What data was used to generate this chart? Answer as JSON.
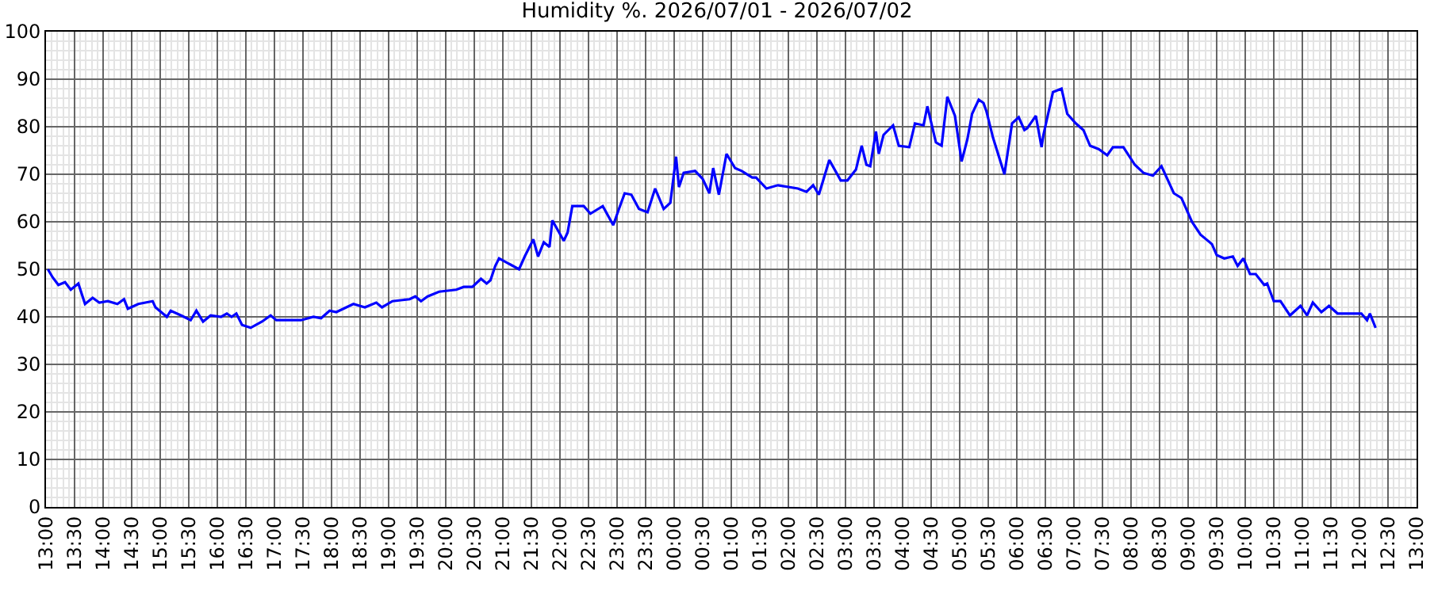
{
  "chart_data": {
    "type": "line",
    "title": "Humidity %. 2026/07/01 - 2026/07/02",
    "x": [
      "2026-07-01T13:02",
      "2026-07-01T13:07",
      "2026-07-01T13:13",
      "2026-07-01T13:20",
      "2026-07-01T13:26",
      "2026-07-01T13:34",
      "2026-07-01T13:41",
      "2026-07-01T13:49",
      "2026-07-01T13:56",
      "2026-07-01T14:05",
      "2026-07-01T14:15",
      "2026-07-01T14:22",
      "2026-07-01T14:26",
      "2026-07-01T14:37",
      "2026-07-01T14:52",
      "2026-07-01T14:55",
      "2026-07-01T15:07",
      "2026-07-01T15:11",
      "2026-07-01T15:22",
      "2026-07-01T15:32",
      "2026-07-01T15:38",
      "2026-07-01T15:45",
      "2026-07-01T15:53",
      "2026-07-01T16:04",
      "2026-07-01T16:10",
      "2026-07-01T16:15",
      "2026-07-01T16:20",
      "2026-07-01T16:26",
      "2026-07-01T16:35",
      "2026-07-01T16:47",
      "2026-07-01T16:56",
      "2026-07-01T17:02",
      "2026-07-01T17:11",
      "2026-07-01T17:28",
      "2026-07-01T17:41",
      "2026-07-01T17:49",
      "2026-07-01T17:58",
      "2026-07-01T18:05",
      "2026-07-01T18:23",
      "2026-07-01T18:35",
      "2026-07-01T18:47",
      "2026-07-01T18:53",
      "2026-07-01T19:04",
      "2026-07-01T19:22",
      "2026-07-01T19:28",
      "2026-07-01T19:34",
      "2026-07-01T19:41",
      "2026-07-01T19:53",
      "2026-07-01T20:11",
      "2026-07-01T20:19",
      "2026-07-01T20:28",
      "2026-07-01T20:37",
      "2026-07-01T20:43",
      "2026-07-01T20:47",
      "2026-07-01T20:52",
      "2026-07-01T20:56",
      "2026-07-01T21:05",
      "2026-07-01T21:08",
      "2026-07-01T21:17",
      "2026-07-01T21:23",
      "2026-07-01T21:32",
      "2026-07-01T21:37",
      "2026-07-01T21:43",
      "2026-07-01T21:49",
      "2026-07-01T21:52",
      "2026-07-01T22:04",
      "2026-07-01T22:08",
      "2026-07-01T22:13",
      "2026-07-01T22:25",
      "2026-07-01T22:32",
      "2026-07-01T22:45",
      "2026-07-01T22:56",
      "2026-07-01T23:02",
      "2026-07-01T23:08",
      "2026-07-01T23:15",
      "2026-07-01T23:23",
      "2026-07-01T23:32",
      "2026-07-01T23:40",
      "2026-07-01T23:49",
      "2026-07-01T23:56",
      "2026-07-02T00:02",
      "2026-07-02T00:05",
      "2026-07-02T00:10",
      "2026-07-02T00:22",
      "2026-07-02T00:30",
      "2026-07-02T00:37",
      "2026-07-02T00:41",
      "2026-07-02T00:47",
      "2026-07-02T00:55",
      "2026-07-02T01:04",
      "2026-07-02T01:11",
      "2026-07-02T01:22",
      "2026-07-02T01:26",
      "2026-07-02T01:37",
      "2026-07-02T01:49",
      "2026-07-02T02:10",
      "2026-07-02T02:19",
      "2026-07-02T02:26",
      "2026-07-02T02:32",
      "2026-07-02T02:37",
      "2026-07-02T02:43",
      "2026-07-02T02:55",
      "2026-07-02T03:02",
      "2026-07-02T03:11",
      "2026-07-02T03:17",
      "2026-07-02T03:22",
      "2026-07-02T03:26",
      "2026-07-02T03:32",
      "2026-07-02T03:35",
      "2026-07-02T03:40",
      "2026-07-02T03:50",
      "2026-07-02T03:56",
      "2026-07-02T04:07",
      "2026-07-02T04:13",
      "2026-07-02T04:22",
      "2026-07-02T04:26",
      "2026-07-02T04:35",
      "2026-07-02T04:41",
      "2026-07-02T04:47",
      "2026-07-02T04:55",
      "2026-07-02T05:02",
      "2026-07-02T05:08",
      "2026-07-02T05:13",
      "2026-07-02T05:20",
      "2026-07-02T05:25",
      "2026-07-02T05:28",
      "2026-07-02T05:35",
      "2026-07-02T05:47",
      "2026-07-02T05:55",
      "2026-07-02T06:02",
      "2026-07-02T06:08",
      "2026-07-02T06:11",
      "2026-07-02T06:20",
      "2026-07-02T06:26",
      "2026-07-02T06:28",
      "2026-07-02T06:38",
      "2026-07-02T06:47",
      "2026-07-02T06:53",
      "2026-07-02T07:02",
      "2026-07-02T07:10",
      "2026-07-02T07:17",
      "2026-07-02T07:26",
      "2026-07-02T07:35",
      "2026-07-02T07:41",
      "2026-07-02T07:52",
      "2026-07-02T08:04",
      "2026-07-02T08:13",
      "2026-07-02T08:23",
      "2026-07-02T08:32",
      "2026-07-02T08:45",
      "2026-07-02T08:53",
      "2026-07-02T09:04",
      "2026-07-02T09:13",
      "2026-07-02T09:25",
      "2026-07-02T09:30",
      "2026-07-02T09:38",
      "2026-07-02T09:47",
      "2026-07-02T09:52",
      "2026-07-02T09:58",
      "2026-07-02T10:05",
      "2026-07-02T10:11",
      "2026-07-02T10:20",
      "2026-07-02T10:23",
      "2026-07-02T10:30",
      "2026-07-02T10:37",
      "2026-07-02T10:47",
      "2026-07-02T10:58",
      "2026-07-02T11:05",
      "2026-07-02T11:11",
      "2026-07-02T11:20",
      "2026-07-02T11:28",
      "2026-07-02T11:37",
      "2026-07-02T11:52",
      "2026-07-02T12:02",
      "2026-07-02T12:08",
      "2026-07-02T12:11",
      "2026-07-02T12:17"
    ],
    "series": [
      {
        "color": "#0000ff",
        "values": [
          50.0,
          48.3,
          46.7,
          47.3,
          45.7,
          47.0,
          42.7,
          44.0,
          43.0,
          43.3,
          42.7,
          43.7,
          41.7,
          42.7,
          43.3,
          42.0,
          40.0,
          41.3,
          40.3,
          39.3,
          41.3,
          39.0,
          40.3,
          40.0,
          40.7,
          40.0,
          40.7,
          38.3,
          37.7,
          39.0,
          40.3,
          39.3,
          39.3,
          39.3,
          40.0,
          39.7,
          41.3,
          41.0,
          42.7,
          42.0,
          43.0,
          42.0,
          43.3,
          43.7,
          44.3,
          43.3,
          44.3,
          45.3,
          45.7,
          46.3,
          46.3,
          48.0,
          47.0,
          47.7,
          50.7,
          52.3,
          51.3,
          51.0,
          50.0,
          52.7,
          56.3,
          52.7,
          55.7,
          54.7,
          60.3,
          56.0,
          57.7,
          63.3,
          63.3,
          61.7,
          63.3,
          59.3,
          62.7,
          66.0,
          65.7,
          62.7,
          62.0,
          67.0,
          62.7,
          64.0,
          73.7,
          67.3,
          70.3,
          70.7,
          69.0,
          66.0,
          71.3,
          65.7,
          74.3,
          71.3,
          70.7,
          69.3,
          69.3,
          67.0,
          67.7,
          67.0,
          66.3,
          67.7,
          65.7,
          69.0,
          73.0,
          68.7,
          68.7,
          71.0,
          76.0,
          72.0,
          71.7,
          79.0,
          74.3,
          78.3,
          80.3,
          76.0,
          75.7,
          80.7,
          80.3,
          84.3,
          76.7,
          76.0,
          86.3,
          82.3,
          72.7,
          77.3,
          82.7,
          85.7,
          85.0,
          83.3,
          77.7,
          70.0,
          80.7,
          82.0,
          79.3,
          79.7,
          82.3,
          75.7,
          78.3,
          87.3,
          88.0,
          82.7,
          80.7,
          79.3,
          76.0,
          75.3,
          74.0,
          75.7,
          75.7,
          72.0,
          70.3,
          69.7,
          71.7,
          66.0,
          65.0,
          60.0,
          57.3,
          55.3,
          53.0,
          52.3,
          52.7,
          50.7,
          52.3,
          49.0,
          49.0,
          46.7,
          47.0,
          43.3,
          43.3,
          40.3,
          42.3,
          40.3,
          43.0,
          41.0,
          42.3,
          40.7,
          40.7,
          40.7,
          39.3,
          40.7,
          37.7
        ]
      }
    ],
    "xlim": [
      "2026-07-01T13:00",
      "2026-07-02T13:00"
    ],
    "xticks": [
      {
        "value": "2026-07-01T13:00",
        "label": "13:00"
      },
      {
        "value": "2026-07-01T13:30",
        "label": "13:30"
      },
      {
        "value": "2026-07-01T14:00",
        "label": "14:00"
      },
      {
        "value": "2026-07-01T14:30",
        "label": "14:30"
      },
      {
        "value": "2026-07-01T15:00",
        "label": "15:00"
      },
      {
        "value": "2026-07-01T15:30",
        "label": "15:30"
      },
      {
        "value": "2026-07-01T16:00",
        "label": "16:00"
      },
      {
        "value": "2026-07-01T16:30",
        "label": "16:30"
      },
      {
        "value": "2026-07-01T17:00",
        "label": "17:00"
      },
      {
        "value": "2026-07-01T17:30",
        "label": "17:30"
      },
      {
        "value": "2026-07-01T18:00",
        "label": "18:00"
      },
      {
        "value": "2026-07-01T18:30",
        "label": "18:30"
      },
      {
        "value": "2026-07-01T19:00",
        "label": "19:00"
      },
      {
        "value": "2026-07-01T19:30",
        "label": "19:30"
      },
      {
        "value": "2026-07-01T20:00",
        "label": "20:00"
      },
      {
        "value": "2026-07-01T20:30",
        "label": "20:30"
      },
      {
        "value": "2026-07-01T21:00",
        "label": "21:00"
      },
      {
        "value": "2026-07-01T21:30",
        "label": "21:30"
      },
      {
        "value": "2026-07-01T22:00",
        "label": "22:00"
      },
      {
        "value": "2026-07-01T22:30",
        "label": "22:30"
      },
      {
        "value": "2026-07-01T23:00",
        "label": "23:00"
      },
      {
        "value": "2026-07-01T23:30",
        "label": "23:30"
      },
      {
        "value": "2026-07-02T00:00",
        "label": "00:00"
      },
      {
        "value": "2026-07-02T00:30",
        "label": "00:30"
      },
      {
        "value": "2026-07-02T01:00",
        "label": "01:00"
      },
      {
        "value": "2026-07-02T01:30",
        "label": "01:30"
      },
      {
        "value": "2026-07-02T02:00",
        "label": "02:00"
      },
      {
        "value": "2026-07-02T02:30",
        "label": "02:30"
      },
      {
        "value": "2026-07-02T03:00",
        "label": "03:00"
      },
      {
        "value": "2026-07-02T03:30",
        "label": "03:30"
      },
      {
        "value": "2026-07-02T04:00",
        "label": "04:00"
      },
      {
        "value": "2026-07-02T04:30",
        "label": "04:30"
      },
      {
        "value": "2026-07-02T05:00",
        "label": "05:00"
      },
      {
        "value": "2026-07-02T05:30",
        "label": "05:30"
      },
      {
        "value": "2026-07-02T06:00",
        "label": "06:00"
      },
      {
        "value": "2026-07-02T06:30",
        "label": "06:30"
      },
      {
        "value": "2026-07-02T07:00",
        "label": "07:00"
      },
      {
        "value": "2026-07-02T07:30",
        "label": "07:30"
      },
      {
        "value": "2026-07-02T08:00",
        "label": "08:00"
      },
      {
        "value": "2026-07-02T08:30",
        "label": "08:30"
      },
      {
        "value": "2026-07-02T09:00",
        "label": "09:00"
      },
      {
        "value": "2026-07-02T09:30",
        "label": "09:30"
      },
      {
        "value": "2026-07-02T10:00",
        "label": "10:00"
      },
      {
        "value": "2026-07-02T10:30",
        "label": "10:30"
      },
      {
        "value": "2026-07-02T11:00",
        "label": "11:00"
      },
      {
        "value": "2026-07-02T11:30",
        "label": "11:30"
      },
      {
        "value": "2026-07-02T12:00",
        "label": "12:00"
      },
      {
        "value": "2026-07-02T12:30",
        "label": "12:30"
      },
      {
        "value": "2026-07-02T13:00",
        "label": "13:00"
      }
    ],
    "ylim": [
      0,
      100
    ],
    "yticks": [
      0,
      10,
      20,
      30,
      40,
      50,
      60,
      70,
      80,
      90,
      100
    ],
    "grid": true,
    "marker": "none",
    "line_style": "solid"
  }
}
